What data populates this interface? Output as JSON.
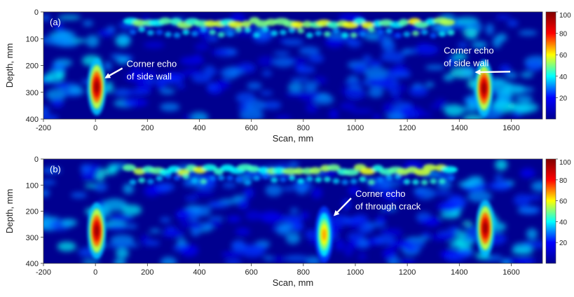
{
  "figure": {
    "colormap": [
      "#00008f",
      "#0000ff",
      "#00ffff",
      "#ffff00",
      "#ff0000",
      "#800000"
    ],
    "background_color": "#00008f",
    "annotation_color": "#ffffff"
  },
  "chart_data": [
    {
      "type": "heatmap",
      "panel_label": "(a)",
      "xlabel": "Scan, mm",
      "ylabel": "Depth, mm",
      "xlim": [
        -200,
        1720
      ],
      "ylim": [
        400,
        0
      ],
      "xticks": [
        -200,
        0,
        200,
        400,
        600,
        800,
        1000,
        1200,
        1400,
        1600
      ],
      "yticks": [
        0,
        100,
        200,
        300,
        400
      ],
      "colorbar": {
        "range": [
          0,
          100
        ],
        "ticks": [
          20,
          40,
          60,
          80,
          100
        ]
      },
      "hotspots": [
        {
          "x": 5,
          "y": 280,
          "value": 100
        },
        {
          "x": 1495,
          "y": 285,
          "value": 100
        }
      ],
      "annotations": [
        {
          "text_lines": [
            "Corner echo",
            "of side wall"
          ],
          "target_x": 40,
          "target_y": 245,
          "label_x": 120,
          "label_y": 205
        },
        {
          "text_lines": [
            "Corner echo",
            "of side wall"
          ],
          "target_x": 1465,
          "target_y": 225,
          "label_x": 1340,
          "label_y": 155
        }
      ]
    },
    {
      "type": "heatmap",
      "panel_label": "(b)",
      "xlabel": "Scan, mm",
      "ylabel": "Depth, mm",
      "xlim": [
        -200,
        1720
      ],
      "ylim": [
        400,
        0
      ],
      "xticks": [
        -200,
        0,
        200,
        400,
        600,
        800,
        1000,
        1200,
        1400,
        1600
      ],
      "yticks": [
        0,
        100,
        200,
        300,
        400
      ],
      "colorbar": {
        "range": [
          0,
          100
        ],
        "ticks": [
          20,
          40,
          60,
          80,
          100
        ]
      },
      "hotspots": [
        {
          "x": 5,
          "y": 275,
          "value": 100
        },
        {
          "x": 880,
          "y": 290,
          "value": 70
        },
        {
          "x": 1500,
          "y": 265,
          "value": 100
        }
      ],
      "annotations": [
        {
          "text_lines": [
            "Corner echo",
            "of through crack"
          ],
          "target_x": 920,
          "target_y": 215,
          "label_x": 1000,
          "label_y": 145
        }
      ]
    }
  ]
}
